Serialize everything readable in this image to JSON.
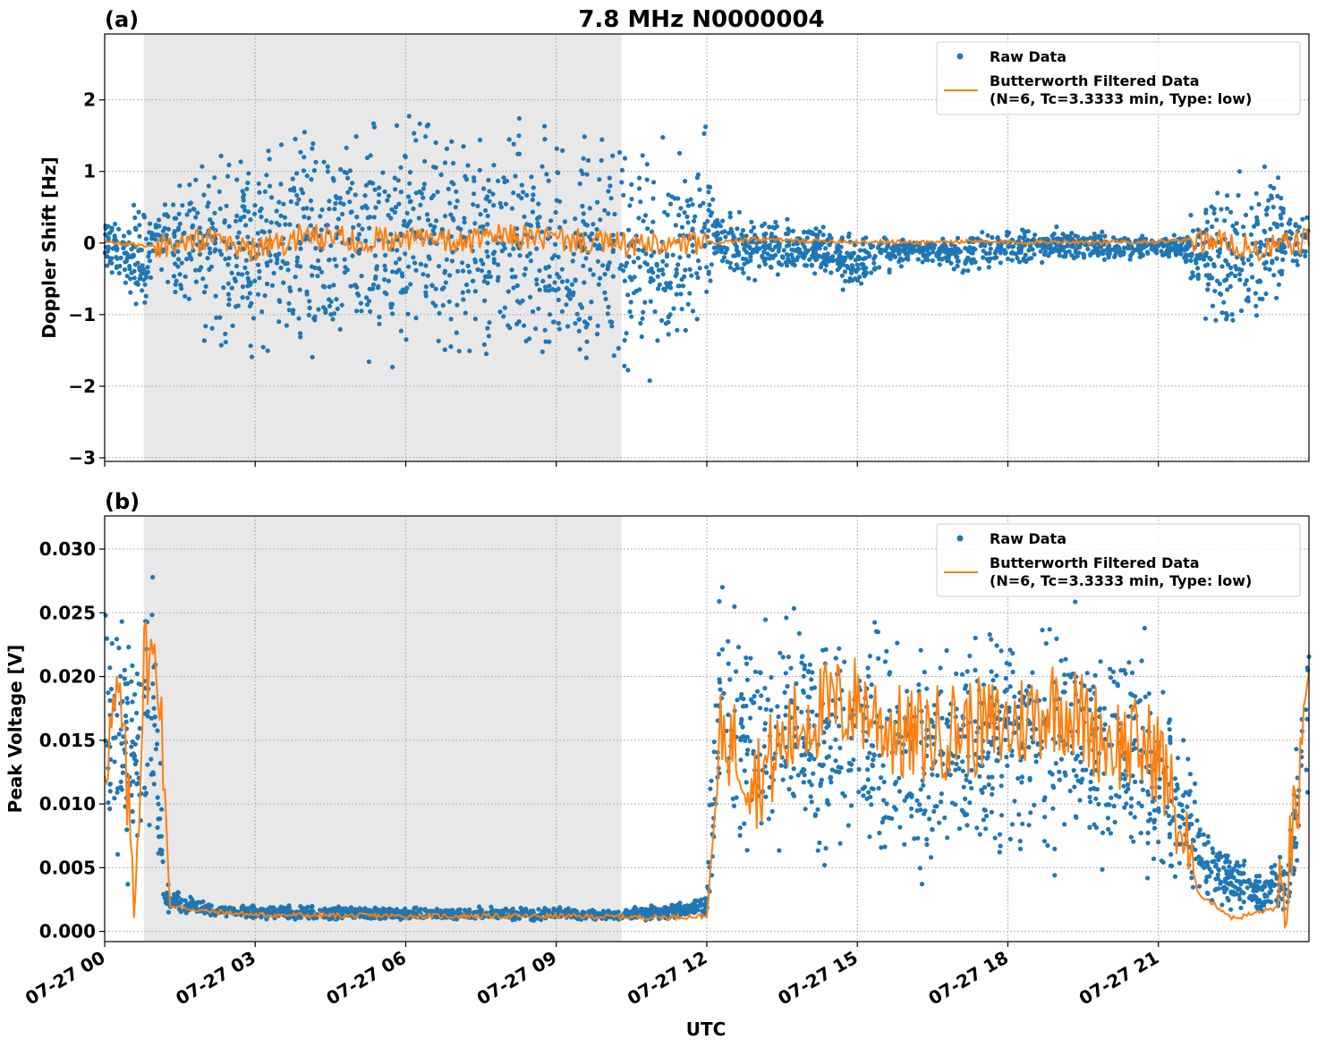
{
  "figure": {
    "title": "7.8 MHz N0000004",
    "xlabel": "UTC",
    "colors": {
      "raw": "#1f77b4",
      "filtered": "#ff7f0e",
      "shade": "#e8e8e8",
      "grid": "#b0b0b0"
    }
  },
  "legend": {
    "raw_label": "Raw Data",
    "filtered_label_line1": "Butterworth Filtered Data",
    "filtered_label_line2": "(N=6, Tc=3.3333 min, Type: low)"
  },
  "x_ticks": [
    {
      "hour": 0,
      "label": "07-27 00"
    },
    {
      "hour": 3,
      "label": "07-27 03"
    },
    {
      "hour": 6,
      "label": "07-27 06"
    },
    {
      "hour": 9,
      "label": "07-27 09"
    },
    {
      "hour": 12,
      "label": "07-27 12"
    },
    {
      "hour": 15,
      "label": "07-27 15"
    },
    {
      "hour": 18,
      "label": "07-27 18"
    },
    {
      "hour": 21,
      "label": "07-27 21"
    }
  ],
  "chart_data": [
    {
      "panel": "(a)",
      "type": "scatter",
      "ylabel": "Doppler Shift [Hz]",
      "xlim_hours": [
        0,
        24
      ],
      "ylim": [
        -3.05,
        2.92
      ],
      "yticks": [
        {
          "v": 2,
          "label": "2"
        },
        {
          "v": 1,
          "label": "1"
        },
        {
          "v": 0,
          "label": "0"
        },
        {
          "v": -1,
          "label": "−1"
        },
        {
          "v": -2,
          "label": "−2"
        },
        {
          "v": -3,
          "label": "−3"
        }
      ],
      "grid": true,
      "legend_position": "top-right",
      "shaded_interval_hours": [
        0.78,
        10.3
      ],
      "series": [
        {
          "name": "Raw Data",
          "style": "points",
          "x_hours": [
            0.0,
            0.5,
            0.8,
            1.0,
            1.2,
            2.0,
            3.0,
            4.0,
            5.0,
            6.0,
            7.0,
            8.0,
            9.0,
            10.0,
            11.0,
            11.5,
            12.0,
            12.2,
            13.0,
            14.0,
            15.0,
            16.0,
            17.0,
            18.0,
            19.0,
            20.0,
            21.0,
            21.5,
            22.0,
            22.5,
            23.0,
            23.5,
            24.0
          ],
          "y_upper": [
            0.5,
            0.6,
            1.0,
            0.4,
            1.2,
            1.5,
            1.9,
            2.1,
            2.2,
            2.3,
            2.1,
            2.0,
            2.1,
            2.1,
            1.8,
            1.6,
            1.9,
            0.5,
            0.5,
            0.4,
            0.2,
            0.15,
            0.15,
            0.3,
            0.3,
            0.2,
            0.1,
            0.2,
            1.2,
            1.6,
            1.5,
            1.0,
            0.5
          ],
          "y_lower": [
            -0.5,
            -0.9,
            -1.6,
            -0.3,
            -1.2,
            -1.8,
            -2.0,
            -2.2,
            -2.1,
            -2.2,
            -2.1,
            -2.2,
            -2.5,
            -2.4,
            -2.3,
            -2.0,
            -1.5,
            -0.5,
            -0.6,
            -0.5,
            -0.8,
            -0.3,
            -0.5,
            -0.4,
            -0.3,
            -0.3,
            -0.2,
            -0.3,
            -1.5,
            -2.0,
            -1.8,
            -0.8,
            -0.4
          ]
        },
        {
          "name": "Butterworth Filtered Data (N=6, Tc=3.3333 min, Type: low)",
          "style": "line",
          "x_hours": [
            0,
            1,
            2,
            3,
            4,
            5,
            6,
            7,
            8,
            9,
            10,
            11,
            12,
            13,
            14,
            15,
            16,
            17,
            18,
            19,
            20,
            21,
            22,
            23,
            24
          ],
          "y": [
            0.02,
            -0.05,
            0.05,
            -0.1,
            0.1,
            0.05,
            0.08,
            0.0,
            0.1,
            0.05,
            0.0,
            -0.05,
            0.0,
            0.05,
            0.03,
            0.02,
            0.01,
            0.02,
            0.01,
            0.02,
            0.01,
            0.02,
            0.05,
            -0.1,
            0.05
          ]
        }
      ]
    },
    {
      "panel": "(b)",
      "type": "scatter",
      "ylabel": "Peak Voltage [V]",
      "xlim_hours": [
        0,
        24
      ],
      "ylim": [
        -0.0008,
        0.0326
      ],
      "yticks": [
        {
          "v": 0.03,
          "label": "0.030"
        },
        {
          "v": 0.025,
          "label": "0.025"
        },
        {
          "v": 0.02,
          "label": "0.020"
        },
        {
          "v": 0.015,
          "label": "0.015"
        },
        {
          "v": 0.01,
          "label": "0.010"
        },
        {
          "v": 0.005,
          "label": "0.005"
        },
        {
          "v": 0.0,
          "label": "0.000"
        }
      ],
      "grid": true,
      "legend_position": "top-right",
      "shaded_interval_hours": [
        0.78,
        10.3
      ],
      "series": [
        {
          "name": "Raw Data",
          "style": "points",
          "x_hours": [
            0.0,
            0.3,
            0.6,
            0.8,
            1.0,
            1.2,
            2.0,
            3.0,
            6.0,
            9.0,
            10.0,
            11.5,
            12.0,
            12.2,
            13.0,
            14.0,
            15.0,
            16.0,
            17.0,
            18.0,
            19.0,
            20.0,
            21.0,
            22.0,
            23.0,
            23.6,
            24.0
          ],
          "y_upper": [
            0.03,
            0.028,
            0.024,
            0.03,
            0.029,
            0.004,
            0.0025,
            0.0022,
            0.002,
            0.002,
            0.0018,
            0.0025,
            0.003,
            0.031,
            0.027,
            0.028,
            0.027,
            0.025,
            0.026,
            0.028,
            0.028,
            0.027,
            0.024,
            0.009,
            0.005,
            0.007,
            0.031
          ],
          "y_lower": [
            0.002,
            0.003,
            0.001,
            0.005,
            0.002,
            0.0012,
            0.001,
            0.0008,
            0.0008,
            0.0008,
            0.0008,
            0.0008,
            0.001,
            0.003,
            0.004,
            0.003,
            0.004,
            0.002,
            0.002,
            0.003,
            0.002,
            0.002,
            0.002,
            0.0008,
            0.0008,
            0.001,
            0.002
          ]
        },
        {
          "name": "Butterworth Filtered Data (N=6, Tc=3.3333 min, Type: low)",
          "style": "line",
          "x_hours": [
            0.0,
            0.3,
            0.6,
            0.8,
            1.1,
            1.3,
            2.0,
            3.0,
            6.0,
            9.0,
            11.0,
            12.0,
            12.3,
            13.0,
            14.0,
            15.0,
            16.0,
            17.0,
            18.0,
            19.0,
            20.0,
            21.0,
            21.8,
            22.5,
            23.5,
            24.0
          ],
          "y": [
            0.014,
            0.018,
            0.003,
            0.022,
            0.02,
            0.002,
            0.0016,
            0.0013,
            0.0012,
            0.0012,
            0.0011,
            0.0012,
            0.016,
            0.012,
            0.017,
            0.018,
            0.015,
            0.016,
            0.016,
            0.018,
            0.015,
            0.014,
            0.003,
            0.001,
            0.002,
            0.017
          ]
        }
      ]
    }
  ]
}
